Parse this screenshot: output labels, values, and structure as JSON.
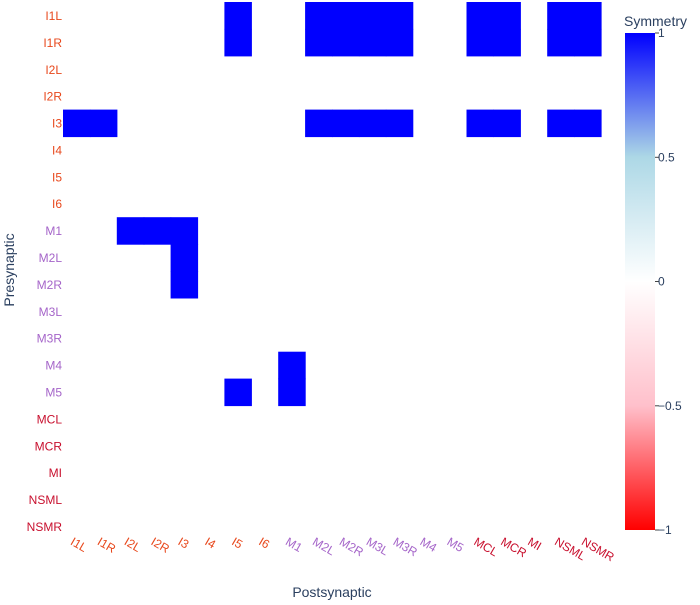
{
  "chart_data": {
    "type": "heatmap",
    "xlabel": "Postsynaptic",
    "ylabel": "Presynaptic",
    "x_categories": [
      "I1L",
      "I1R",
      "I2L",
      "I2R",
      "I3",
      "I4",
      "I5",
      "I6",
      "M1",
      "M2L",
      "M2R",
      "M3L",
      "M3R",
      "M4",
      "M5",
      "MCL",
      "MCR",
      "MI",
      "NSML",
      "NSMR"
    ],
    "y_categories": [
      "I1L",
      "I1R",
      "I2L",
      "I2R",
      "I3",
      "I4",
      "I5",
      "I6",
      "M1",
      "M2L",
      "M2R",
      "M3L",
      "M3R",
      "M4",
      "M5",
      "MCL",
      "MCR",
      "MI",
      "NSML",
      "NSMR"
    ],
    "category_groups": {
      "I": [
        "I1L",
        "I1R",
        "I2L",
        "I2R",
        "I3",
        "I4",
        "I5",
        "I6"
      ],
      "M": [
        "M1",
        "M2L",
        "M2R",
        "M3L",
        "M3R",
        "M4",
        "M5"
      ],
      "other": [
        "MCL",
        "MCR",
        "MI",
        "NSML",
        "NSMR"
      ]
    },
    "group_colors": {
      "I": "#e8481c",
      "M": "#a565c9",
      "other": "#c8102e"
    },
    "colorscale": {
      "min_color": "#ff0000",
      "mid_color": "#ffffff",
      "max_color": "#0000ff",
      "light_blue": "#add8e6",
      "pink": "#ffc0cb"
    },
    "zmin": -1,
    "zmax": 1,
    "cells": [
      {
        "x": "I5",
        "y": "I1L",
        "value": 1
      },
      {
        "x": "I5",
        "y": "I1R",
        "value": 1
      },
      {
        "x": "M2L",
        "y": "I1L",
        "value": 1
      },
      {
        "x": "M2R",
        "y": "I1L",
        "value": 1
      },
      {
        "x": "M3L",
        "y": "I1L",
        "value": 1
      },
      {
        "x": "M3R",
        "y": "I1L",
        "value": 1
      },
      {
        "x": "M2L",
        "y": "I1R",
        "value": 1
      },
      {
        "x": "M2R",
        "y": "I1R",
        "value": 1
      },
      {
        "x": "M3L",
        "y": "I1R",
        "value": 1
      },
      {
        "x": "M3R",
        "y": "I1R",
        "value": 1
      },
      {
        "x": "MCL",
        "y": "I1L",
        "value": 1
      },
      {
        "x": "MCR",
        "y": "I1L",
        "value": 1
      },
      {
        "x": "MCL",
        "y": "I1R",
        "value": 1
      },
      {
        "x": "MCR",
        "y": "I1R",
        "value": 1
      },
      {
        "x": "NSML",
        "y": "I1L",
        "value": 1
      },
      {
        "x": "NSMR",
        "y": "I1L",
        "value": 1
      },
      {
        "x": "NSML",
        "y": "I1R",
        "value": 1
      },
      {
        "x": "NSMR",
        "y": "I1R",
        "value": 1
      },
      {
        "x": "I1L",
        "y": "I3",
        "value": 1
      },
      {
        "x": "I1R",
        "y": "I3",
        "value": 1
      },
      {
        "x": "M2L",
        "y": "I3",
        "value": 1
      },
      {
        "x": "M2R",
        "y": "I3",
        "value": 1
      },
      {
        "x": "M3L",
        "y": "I3",
        "value": 1
      },
      {
        "x": "M3R",
        "y": "I3",
        "value": 1
      },
      {
        "x": "MCL",
        "y": "I3",
        "value": 1
      },
      {
        "x": "MCR",
        "y": "I3",
        "value": 1
      },
      {
        "x": "NSML",
        "y": "I3",
        "value": 1
      },
      {
        "x": "NSMR",
        "y": "I3",
        "value": 1
      },
      {
        "x": "I2L",
        "y": "M1",
        "value": 1
      },
      {
        "x": "I2R",
        "y": "M1",
        "value": 1
      },
      {
        "x": "I3",
        "y": "M1",
        "value": 1
      },
      {
        "x": "I3",
        "y": "M2L",
        "value": 1
      },
      {
        "x": "I3",
        "y": "M2R",
        "value": 1
      },
      {
        "x": "M1",
        "y": "M4",
        "value": 1
      },
      {
        "x": "M1",
        "y": "M5",
        "value": 1
      },
      {
        "x": "I5",
        "y": "M5",
        "value": 1
      }
    ],
    "colorbar": {
      "title": "Symmetry",
      "ticks": [
        1,
        0.5,
        0,
        -0.5,
        -1
      ],
      "tick_labels": [
        "1",
        "0.5",
        "0",
        "−0.5",
        "−1"
      ]
    }
  }
}
